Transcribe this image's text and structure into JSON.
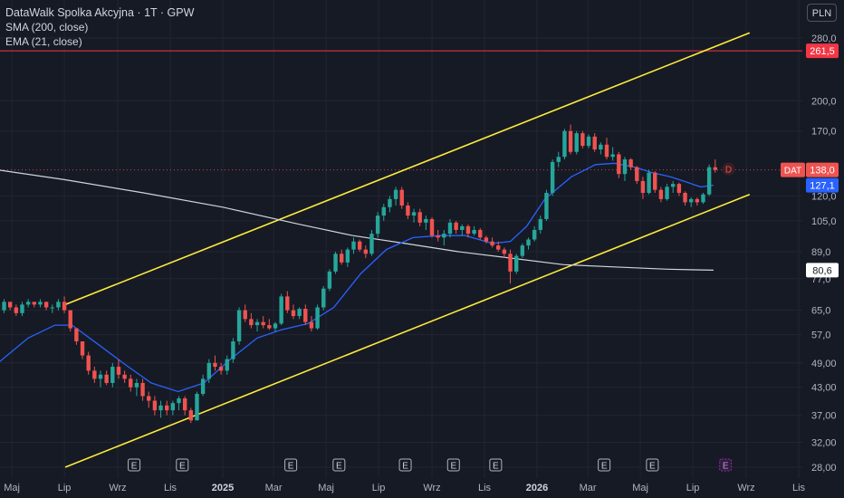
{
  "legend": {
    "title": "DataWalk Spolka Akcyjna · 1T · GPW",
    "sma": "SMA (200, close)",
    "ema": "EMA (21, close)"
  },
  "currency": "PLN",
  "symbol_tag": "DAT",
  "dividend_marker": "D",
  "earnings_marker": "E",
  "colors": {
    "background": "#161a25",
    "up": "#26a69a",
    "down": "#ef5350",
    "sma": "#d1d4dc",
    "ema": "#2962ff",
    "channel": "#ffeb3b",
    "hline": "#f23645",
    "grid": "#232632",
    "text": "#b2b5be"
  },
  "chart_data": {
    "type": "candlestick",
    "scale": "log",
    "y_ticks": [
      "280,0",
      "200,0",
      "170,0",
      "120,0",
      "105,0",
      "89,0",
      "77,0",
      "65,0",
      "57,0",
      "49,00",
      "43,00",
      "37,00",
      "32,00",
      "28,00"
    ],
    "y_tick_values": [
      280,
      200,
      170,
      120,
      105,
      89,
      77,
      65,
      57,
      49,
      43,
      37,
      32,
      28
    ],
    "x_ticks": [
      {
        "label": "Maj",
        "date": "2024-05-01"
      },
      {
        "label": "Lip",
        "date": "2024-07-01"
      },
      {
        "label": "Wrz",
        "date": "2024-09-01"
      },
      {
        "label": "Lis",
        "date": "2024-11-01"
      },
      {
        "label": "2025",
        "date": "2025-01-01"
      },
      {
        "label": "Mar",
        "date": "2025-03-01"
      },
      {
        "label": "Maj",
        "date": "2025-05-01"
      },
      {
        "label": "Lip",
        "date": "2025-07-01"
      },
      {
        "label": "Wrz",
        "date": "2025-09-01"
      },
      {
        "label": "Lis",
        "date": "2025-11-01"
      },
      {
        "label": "2026",
        "date": "2026-01-01"
      },
      {
        "label": "Mar",
        "date": "2026-03-01"
      },
      {
        "label": "Maj",
        "date": "2026-05-01"
      },
      {
        "label": "Lip",
        "date": "2026-07-01"
      },
      {
        "label": "Wrz",
        "date": "2026-09-01"
      },
      {
        "label": "Lis",
        "date": "2026-11-01"
      }
    ],
    "price_labels": [
      {
        "text": "261,5",
        "value": 261.5,
        "kind": "hline"
      },
      {
        "text": "138,0",
        "value": 138.0,
        "kind": "last"
      },
      {
        "text": "127,1",
        "value": 127.1,
        "kind": "ema"
      },
      {
        "text": "80,6",
        "value": 80.6,
        "kind": "sma"
      }
    ],
    "horizontal_line": 261.5,
    "channel": {
      "upper": [
        [
          "2024-07-02",
          67
        ],
        [
          "2026-09-05",
          288
        ]
      ],
      "lower": [
        [
          "2024-07-02",
          28
        ],
        [
          "2026-09-05",
          121
        ]
      ]
    },
    "earnings_dates": [
      "2024-09-20",
      "2024-11-15",
      "2025-03-21",
      "2025-05-16",
      "2025-08-01",
      "2025-09-26",
      "2025-11-14",
      "2026-03-20",
      "2026-05-15",
      "2026-08-08"
    ],
    "dividend": {
      "date": "2026-08-01",
      "value": 138.0
    },
    "sma": [
      [
        "2024-04-15",
        138
      ],
      [
        "2024-07-01",
        131
      ],
      [
        "2024-10-01",
        122
      ],
      [
        "2025-01-01",
        113
      ],
      [
        "2025-04-01",
        103
      ],
      [
        "2025-06-01",
        97
      ],
      [
        "2025-08-01",
        93
      ],
      [
        "2025-10-01",
        89
      ],
      [
        "2025-12-01",
        86
      ],
      [
        "2026-02-01",
        83
      ],
      [
        "2026-04-01",
        82
      ],
      [
        "2026-06-01",
        81
      ],
      [
        "2026-07-25",
        80.6
      ]
    ],
    "ema": [
      [
        "2024-04-15",
        49
      ],
      [
        "2024-05-20",
        56
      ],
      [
        "2024-06-20",
        60
      ],
      [
        "2024-07-10",
        60
      ],
      [
        "2024-08-10",
        54
      ],
      [
        "2024-09-10",
        48.5
      ],
      [
        "2024-10-10",
        44
      ],
      [
        "2024-11-10",
        42
      ],
      [
        "2024-12-10",
        44
      ],
      [
        "2025-01-10",
        50
      ],
      [
        "2025-02-10",
        56
      ],
      [
        "2025-03-10",
        58.5
      ],
      [
        "2025-04-10",
        60.5
      ],
      [
        "2025-05-10",
        66
      ],
      [
        "2025-06-10",
        79
      ],
      [
        "2025-07-10",
        90
      ],
      [
        "2025-08-10",
        96
      ],
      [
        "2025-09-10",
        97
      ],
      [
        "2025-10-10",
        97
      ],
      [
        "2025-11-10",
        93
      ],
      [
        "2025-12-01",
        94
      ],
      [
        "2025-12-20",
        102
      ],
      [
        "2026-01-10",
        118
      ],
      [
        "2026-02-10",
        133
      ],
      [
        "2026-03-10",
        142
      ],
      [
        "2026-04-01",
        143
      ],
      [
        "2026-04-25",
        140
      ],
      [
        "2026-05-15",
        136
      ],
      [
        "2026-06-05",
        133
      ],
      [
        "2026-06-25",
        129
      ],
      [
        "2026-07-10",
        126
      ],
      [
        "2026-07-25",
        127.1
      ]
    ],
    "candles": [
      [
        "2024-04-15",
        67,
        68,
        64,
        65
      ],
      [
        "2024-04-22",
        65,
        69,
        64,
        68
      ],
      [
        "2024-04-29",
        68,
        68,
        65,
        66
      ],
      [
        "2024-05-06",
        66,
        67,
        63,
        64
      ],
      [
        "2024-05-13",
        64,
        68,
        63,
        67
      ],
      [
        "2024-05-20",
        67,
        69,
        66,
        68
      ],
      [
        "2024-05-27",
        68,
        68,
        66,
        67
      ],
      [
        "2024-06-03",
        67,
        69,
        66,
        68
      ],
      [
        "2024-06-10",
        68,
        68,
        65,
        66
      ],
      [
        "2024-06-17",
        66,
        67,
        64,
        66
      ],
      [
        "2024-06-24",
        66,
        69,
        65,
        68
      ],
      [
        "2024-07-01",
        68,
        70,
        64,
        65
      ],
      [
        "2024-07-08",
        65,
        65,
        58,
        59
      ],
      [
        "2024-07-15",
        59,
        59,
        54,
        55
      ],
      [
        "2024-07-22",
        55,
        55,
        50,
        51
      ],
      [
        "2024-07-29",
        51,
        52,
        46,
        47
      ],
      [
        "2024-08-05",
        47,
        48,
        44,
        45
      ],
      [
        "2024-08-12",
        45,
        47,
        43,
        46
      ],
      [
        "2024-08-19",
        46,
        47,
        43.5,
        44
      ],
      [
        "2024-08-26",
        44,
        49,
        43,
        48
      ],
      [
        "2024-09-02",
        48,
        50,
        45,
        46
      ],
      [
        "2024-09-09",
        46,
        47,
        44,
        45
      ],
      [
        "2024-09-16",
        45,
        46,
        42,
        43
      ],
      [
        "2024-09-23",
        43,
        45,
        41,
        44
      ],
      [
        "2024-09-30",
        44,
        45,
        40,
        41
      ],
      [
        "2024-10-07",
        41,
        42,
        38.5,
        40
      ],
      [
        "2024-10-14",
        40,
        41,
        37,
        38
      ],
      [
        "2024-10-21",
        38,
        40,
        36.5,
        39
      ],
      [
        "2024-10-28",
        39,
        40,
        37,
        38
      ],
      [
        "2024-11-04",
        38,
        40,
        37,
        39.5
      ],
      [
        "2024-11-11",
        39.5,
        41,
        38,
        40.5
      ],
      [
        "2024-11-18",
        40.5,
        41,
        37,
        38
      ],
      [
        "2024-11-25",
        38,
        38.5,
        35.5,
        36
      ],
      [
        "2024-12-02",
        36,
        42,
        36,
        41.5
      ],
      [
        "2024-12-09",
        41.5,
        46,
        41,
        45
      ],
      [
        "2024-12-16",
        45,
        50,
        44,
        49
      ],
      [
        "2024-12-23",
        49,
        51,
        47,
        48
      ],
      [
        "2024-12-30",
        48,
        49,
        46,
        47
      ],
      [
        "2025-01-06",
        47,
        51,
        46,
        50
      ],
      [
        "2025-01-13",
        50,
        56,
        49,
        55
      ],
      [
        "2025-01-20",
        55,
        66,
        54,
        65
      ],
      [
        "2025-01-27",
        65,
        67,
        61,
        62
      ],
      [
        "2025-02-03",
        62,
        64,
        59,
        60
      ],
      [
        "2025-02-10",
        60,
        62,
        58,
        61
      ],
      [
        "2025-02-17",
        61,
        63,
        59,
        60
      ],
      [
        "2025-02-24",
        60,
        62,
        58.5,
        59
      ],
      [
        "2025-03-03",
        59,
        61,
        58,
        60.5
      ],
      [
        "2025-03-10",
        60.5,
        71,
        60,
        70
      ],
      [
        "2025-03-17",
        70,
        72,
        64,
        65
      ],
      [
        "2025-03-24",
        65,
        67,
        62,
        63
      ],
      [
        "2025-03-31",
        63,
        66,
        62,
        65.5
      ],
      [
        "2025-04-07",
        65.5,
        67,
        60,
        61
      ],
      [
        "2025-04-14",
        61,
        63,
        58,
        59
      ],
      [
        "2025-04-21",
        59,
        67,
        58.5,
        66
      ],
      [
        "2025-04-28",
        66,
        74,
        65,
        73
      ],
      [
        "2025-05-05",
        73,
        81,
        72,
        80
      ],
      [
        "2025-05-12",
        80,
        89,
        79,
        88
      ],
      [
        "2025-05-19",
        88,
        90,
        83,
        84
      ],
      [
        "2025-05-26",
        84,
        91,
        82,
        90
      ],
      [
        "2025-06-02",
        90,
        96,
        88,
        94
      ],
      [
        "2025-06-09",
        94,
        95,
        89,
        90
      ],
      [
        "2025-06-16",
        90,
        92,
        86,
        88
      ],
      [
        "2025-06-23",
        88,
        100,
        87,
        98
      ],
      [
        "2025-06-30",
        98,
        110,
        96,
        108
      ],
      [
        "2025-07-07",
        108,
        115,
        105,
        113
      ],
      [
        "2025-07-14",
        113,
        120,
        110,
        118
      ],
      [
        "2025-07-21",
        118,
        126,
        114,
        124
      ],
      [
        "2025-07-28",
        124,
        126,
        112,
        114
      ],
      [
        "2025-08-04",
        114,
        116,
        106,
        108
      ],
      [
        "2025-08-11",
        108,
        112,
        104,
        110
      ],
      [
        "2025-08-18",
        110,
        112,
        102,
        104
      ],
      [
        "2025-08-25",
        104,
        108,
        100,
        106
      ],
      [
        "2025-09-01",
        106,
        107,
        96,
        97
      ],
      [
        "2025-09-08",
        97,
        100,
        94,
        96
      ],
      [
        "2025-09-15",
        96,
        100,
        92,
        98
      ],
      [
        "2025-09-22",
        98,
        106,
        96,
        104
      ],
      [
        "2025-09-29",
        104,
        105,
        98,
        100
      ],
      [
        "2025-10-06",
        100,
        103,
        97,
        102
      ],
      [
        "2025-10-13",
        102,
        103,
        96,
        98
      ],
      [
        "2025-10-20",
        98,
        102,
        97,
        100
      ],
      [
        "2025-10-27",
        100,
        101,
        95,
        96
      ],
      [
        "2025-11-03",
        96,
        97,
        93,
        94
      ],
      [
        "2025-11-10",
        94,
        96,
        91,
        92
      ],
      [
        "2025-11-17",
        92,
        94,
        89,
        90
      ],
      [
        "2025-11-24",
        90,
        91,
        86,
        88
      ],
      [
        "2025-12-01",
        88,
        90,
        75,
        80
      ],
      [
        "2025-12-08",
        80,
        88,
        79,
        87
      ],
      [
        "2025-12-15",
        87,
        93,
        86,
        92
      ],
      [
        "2025-12-22",
        92,
        96,
        90,
        95
      ],
      [
        "2025-12-29",
        95,
        102,
        94,
        100
      ],
      [
        "2026-01-05",
        100,
        108,
        98,
        106
      ],
      [
        "2026-01-12",
        106,
        124,
        105,
        122
      ],
      [
        "2026-01-19",
        122,
        146,
        120,
        144
      ],
      [
        "2026-01-26",
        144,
        152,
        140,
        148
      ],
      [
        "2026-02-02",
        148,
        172,
        146,
        170
      ],
      [
        "2026-02-09",
        170,
        176,
        150,
        152
      ],
      [
        "2026-02-16",
        152,
        170,
        150,
        168
      ],
      [
        "2026-02-23",
        168,
        170,
        155,
        157
      ],
      [
        "2026-03-02",
        157,
        167,
        155,
        165
      ],
      [
        "2026-03-09",
        165,
        168,
        152,
        154
      ],
      [
        "2026-03-16",
        154,
        160,
        150,
        158
      ],
      [
        "2026-03-23",
        158,
        164,
        146,
        148
      ],
      [
        "2026-03-30",
        148,
        156,
        145,
        150
      ],
      [
        "2026-04-06",
        150,
        152,
        132,
        135
      ],
      [
        "2026-04-13",
        135,
        148,
        130,
        146
      ],
      [
        "2026-04-20",
        146,
        147,
        138,
        140
      ],
      [
        "2026-04-27",
        140,
        141,
        128,
        130
      ],
      [
        "2026-05-04",
        130,
        133,
        118,
        122
      ],
      [
        "2026-05-11",
        122,
        138,
        121,
        136
      ],
      [
        "2026-05-18",
        136,
        137,
        122,
        124
      ],
      [
        "2026-05-25",
        124,
        126,
        116,
        118
      ],
      [
        "2026-06-01",
        118,
        128,
        117,
        126
      ],
      [
        "2026-06-08",
        126,
        130,
        122,
        128
      ],
      [
        "2026-06-15",
        128,
        129,
        120,
        122
      ],
      [
        "2026-06-22",
        122,
        123,
        114,
        116
      ],
      [
        "2026-06-29",
        116,
        119,
        113,
        118
      ],
      [
        "2026-07-06",
        118,
        119,
        114,
        116
      ],
      [
        "2026-07-13",
        116,
        122,
        115,
        121
      ],
      [
        "2026-07-20",
        121,
        142,
        120,
        140
      ],
      [
        "2026-07-27",
        140,
        146,
        136,
        138
      ]
    ]
  }
}
